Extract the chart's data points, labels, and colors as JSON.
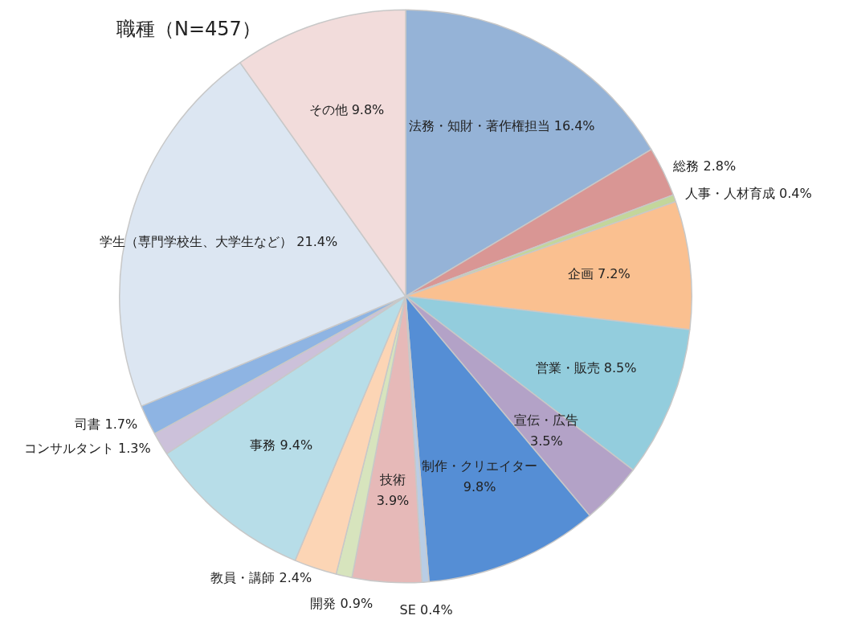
{
  "chart_data": {
    "type": "pie",
    "title": "職種（N=457）",
    "categories": [
      "法務・知財・著作権担当",
      "総務",
      "人事・人材育成",
      "企画",
      "営業・販売",
      "宣伝・広告",
      "制作・クリエイター",
      "SE",
      "技術",
      "開発",
      "教員・講師",
      "事務",
      "コンサルタント",
      "司書",
      "学生（専門学校生、大学生など）",
      "その他"
    ],
    "values": [
      16.4,
      2.8,
      0.4,
      7.2,
      8.5,
      3.5,
      9.8,
      0.4,
      3.9,
      0.9,
      2.4,
      9.4,
      1.3,
      1.7,
      21.4,
      9.8
    ],
    "value_labels": [
      "16.4%",
      "2.8%",
      "0.4%",
      "7.2%",
      "8.5%",
      "3.5%",
      "9.8%",
      "0.4%",
      "3.9%",
      "0.9%",
      "2.4%",
      "9.4%",
      "1.3%",
      "1.7%",
      "21.4%",
      "9.8%"
    ],
    "colors": [
      "#95b3d7",
      "#d99694",
      "#c3d69b",
      "#fac090",
      "#93cddd",
      "#b3a2c7",
      "#558ed5",
      "#b9cde5",
      "#e6b9b8",
      "#d7e4bd",
      "#fcd5b5",
      "#b7dde8",
      "#ccc1da",
      "#8eb4e3",
      "#dce6f2",
      "#f2dcdb"
    ],
    "legend": false
  }
}
